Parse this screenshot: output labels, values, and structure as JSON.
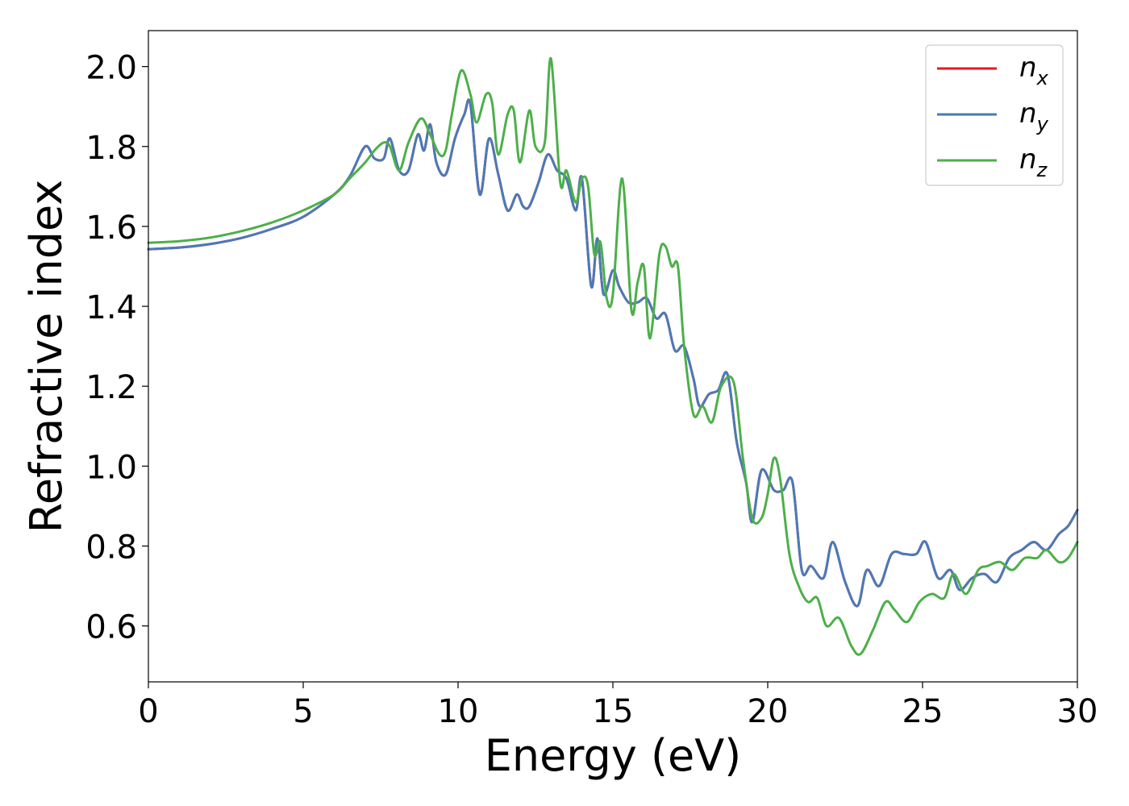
{
  "chart_data": {
    "type": "line",
    "xlabel": "Energy (eV)",
    "ylabel": "Refractive index",
    "xlim": [
      0,
      30
    ],
    "ylim": [
      0.46,
      2.09
    ],
    "xticks": [
      "0",
      "5",
      "10",
      "15",
      "20",
      "25",
      "30"
    ],
    "yticks": [
      "0.6",
      "0.8",
      "1.0",
      "1.2",
      "1.4",
      "1.6",
      "1.8",
      "2.0"
    ],
    "grid": false,
    "legend_position": "top-right",
    "series": [
      {
        "name": "n_x",
        "legend_main": "n",
        "legend_sub": "x",
        "color": "#e41a1c",
        "x": [
          0,
          1,
          2,
          3,
          4,
          5,
          6,
          6.5,
          7,
          7.3,
          7.6,
          7.8,
          8.1,
          8.4,
          8.7,
          8.9,
          9.1,
          9.3,
          9.6,
          9.9,
          10.2,
          10.4,
          10.7,
          11.0,
          11.3,
          11.6,
          11.9,
          12.1,
          12.3,
          12.6,
          12.9,
          13.2,
          13.5,
          13.8,
          14.0,
          14.3,
          14.5,
          14.7,
          15.0,
          15.2,
          15.5,
          15.8,
          16.1,
          16.4,
          16.7,
          17.0,
          17.3,
          17.6,
          17.8,
          18.1,
          18.4,
          18.7,
          19.0,
          19.3,
          19.5,
          19.8,
          20.2,
          20.5,
          20.8,
          21.1,
          21.4,
          21.8,
          22.1,
          22.5,
          22.9,
          23.2,
          23.6,
          24.0,
          24.4,
          24.8,
          25.1,
          25.5,
          25.9,
          26.2,
          26.6,
          27.0,
          27.4,
          27.8,
          28.2,
          28.6,
          29.0,
          29.4,
          29.7,
          30.0
        ],
        "y": [
          1.543,
          1.547,
          1.556,
          1.571,
          1.594,
          1.624,
          1.68,
          1.725,
          1.8,
          1.77,
          1.77,
          1.82,
          1.74,
          1.74,
          1.83,
          1.79,
          1.855,
          1.76,
          1.73,
          1.82,
          1.88,
          1.905,
          1.68,
          1.82,
          1.73,
          1.64,
          1.68,
          1.65,
          1.65,
          1.71,
          1.78,
          1.74,
          1.72,
          1.64,
          1.72,
          1.45,
          1.57,
          1.43,
          1.49,
          1.45,
          1.41,
          1.41,
          1.42,
          1.37,
          1.38,
          1.29,
          1.3,
          1.22,
          1.15,
          1.18,
          1.19,
          1.23,
          1.06,
          0.96,
          0.86,
          0.99,
          0.94,
          0.94,
          0.96,
          0.74,
          0.75,
          0.72,
          0.81,
          0.71,
          0.65,
          0.74,
          0.7,
          0.78,
          0.78,
          0.78,
          0.81,
          0.72,
          0.74,
          0.69,
          0.72,
          0.73,
          0.71,
          0.77,
          0.79,
          0.81,
          0.79,
          0.83,
          0.85,
          0.89
        ]
      },
      {
        "name": "n_y",
        "legend_main": "n",
        "legend_sub": "y",
        "color": "#4a7ab8",
        "x": [
          0,
          1,
          2,
          3,
          4,
          5,
          6,
          6.5,
          7,
          7.3,
          7.6,
          7.8,
          8.1,
          8.4,
          8.7,
          8.9,
          9.1,
          9.3,
          9.6,
          9.9,
          10.2,
          10.4,
          10.7,
          11.0,
          11.3,
          11.6,
          11.9,
          12.1,
          12.3,
          12.6,
          12.9,
          13.2,
          13.5,
          13.8,
          14.0,
          14.3,
          14.5,
          14.7,
          15.0,
          15.2,
          15.5,
          15.8,
          16.1,
          16.4,
          16.7,
          17.0,
          17.3,
          17.6,
          17.8,
          18.1,
          18.4,
          18.7,
          19.0,
          19.3,
          19.5,
          19.8,
          20.2,
          20.5,
          20.8,
          21.1,
          21.4,
          21.8,
          22.1,
          22.5,
          22.9,
          23.2,
          23.6,
          24.0,
          24.4,
          24.8,
          25.1,
          25.5,
          25.9,
          26.2,
          26.6,
          27.0,
          27.4,
          27.8,
          28.2,
          28.6,
          29.0,
          29.4,
          29.7,
          30.0
        ],
        "y": [
          1.543,
          1.547,
          1.556,
          1.571,
          1.594,
          1.624,
          1.68,
          1.725,
          1.8,
          1.77,
          1.77,
          1.82,
          1.74,
          1.74,
          1.83,
          1.79,
          1.855,
          1.76,
          1.73,
          1.82,
          1.88,
          1.905,
          1.68,
          1.82,
          1.73,
          1.64,
          1.68,
          1.65,
          1.65,
          1.71,
          1.78,
          1.74,
          1.72,
          1.64,
          1.72,
          1.45,
          1.57,
          1.43,
          1.49,
          1.45,
          1.41,
          1.41,
          1.42,
          1.37,
          1.38,
          1.29,
          1.3,
          1.22,
          1.15,
          1.18,
          1.19,
          1.23,
          1.06,
          0.96,
          0.86,
          0.99,
          0.94,
          0.94,
          0.96,
          0.74,
          0.75,
          0.72,
          0.81,
          0.71,
          0.65,
          0.74,
          0.7,
          0.78,
          0.78,
          0.78,
          0.81,
          0.72,
          0.74,
          0.69,
          0.72,
          0.73,
          0.71,
          0.77,
          0.79,
          0.81,
          0.79,
          0.83,
          0.85,
          0.89
        ]
      },
      {
        "name": "n_z",
        "legend_main": "n",
        "legend_sub": "z",
        "color": "#4daf4a",
        "x": [
          0,
          1,
          2,
          3,
          4,
          5,
          6,
          6.5,
          7,
          7.3,
          7.6,
          7.8,
          8.1,
          8.4,
          8.8,
          9.1,
          9.4,
          9.6,
          9.8,
          10.1,
          10.4,
          10.6,
          10.9,
          11.1,
          11.3,
          11.6,
          11.8,
          12.0,
          12.3,
          12.5,
          12.8,
          13.0,
          13.3,
          13.5,
          13.8,
          14.0,
          14.2,
          14.4,
          14.6,
          14.8,
          15.0,
          15.3,
          15.6,
          15.8,
          16.0,
          16.2,
          16.5,
          16.7,
          16.9,
          17.1,
          17.3,
          17.6,
          17.9,
          18.2,
          18.5,
          18.9,
          19.2,
          19.5,
          19.8,
          20.0,
          20.2,
          20.4,
          20.7,
          21.0,
          21.3,
          21.6,
          21.9,
          22.3,
          22.7,
          23.0,
          23.4,
          23.8,
          24.1,
          24.5,
          24.9,
          25.3,
          25.7,
          26.0,
          26.4,
          26.8,
          27.1,
          27.5,
          27.9,
          28.3,
          28.7,
          29.0,
          29.4,
          29.7,
          30.0
        ],
        "y": [
          1.559,
          1.563,
          1.572,
          1.588,
          1.61,
          1.64,
          1.68,
          1.72,
          1.76,
          1.79,
          1.81,
          1.8,
          1.74,
          1.81,
          1.87,
          1.83,
          1.78,
          1.79,
          1.88,
          1.99,
          1.93,
          1.86,
          1.93,
          1.91,
          1.78,
          1.88,
          1.89,
          1.76,
          1.89,
          1.8,
          1.81,
          2.02,
          1.71,
          1.74,
          1.66,
          1.72,
          1.7,
          1.53,
          1.56,
          1.42,
          1.43,
          1.72,
          1.39,
          1.46,
          1.5,
          1.32,
          1.53,
          1.55,
          1.5,
          1.5,
          1.3,
          1.13,
          1.15,
          1.11,
          1.2,
          1.21,
          1.02,
          0.87,
          0.87,
          0.93,
          1.02,
          0.97,
          0.78,
          0.7,
          0.66,
          0.67,
          0.6,
          0.62,
          0.55,
          0.53,
          0.59,
          0.66,
          0.64,
          0.61,
          0.66,
          0.68,
          0.67,
          0.73,
          0.68,
          0.74,
          0.75,
          0.76,
          0.74,
          0.77,
          0.77,
          0.79,
          0.76,
          0.77,
          0.81
        ]
      }
    ]
  }
}
